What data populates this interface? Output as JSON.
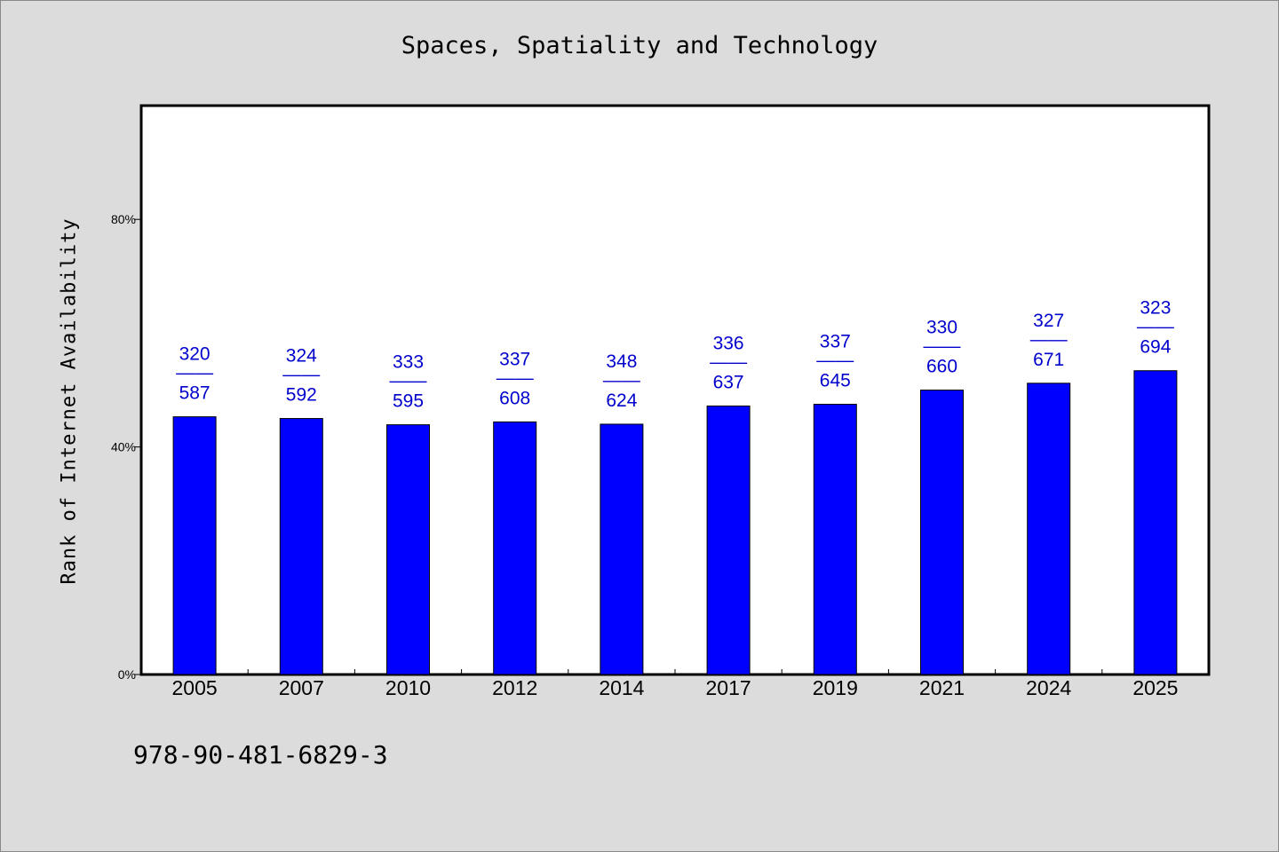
{
  "chart_data": {
    "type": "bar",
    "title": "Spaces, Spatiality and Technology",
    "ylabel": "Rank of Internet Availability",
    "xlabel": "",
    "categories": [
      "2005",
      "2007",
      "2010",
      "2012",
      "2014",
      "2017",
      "2019",
      "2021",
      "2024",
      "2025"
    ],
    "values": [
      45.3,
      45.0,
      43.9,
      44.4,
      44.0,
      47.2,
      47.5,
      50.0,
      51.2,
      53.4
    ],
    "labels_top": [
      "320",
      "324",
      "333",
      "337",
      "348",
      "336",
      "337",
      "330",
      "327",
      "323"
    ],
    "labels_sep": "——",
    "labels_bottom": [
      "587",
      "592",
      "595",
      "608",
      "624",
      "637",
      "645",
      "660",
      "671",
      "694"
    ],
    "ylim": [
      0,
      100
    ],
    "yticks": [
      0,
      40,
      80
    ],
    "ytick_labels": [
      "0%",
      "40%",
      "80%"
    ],
    "grid": false,
    "bar_color": "#0000ff",
    "label_color": "#0000cc"
  },
  "footer": {
    "code": "978-90-481-6829-3"
  }
}
